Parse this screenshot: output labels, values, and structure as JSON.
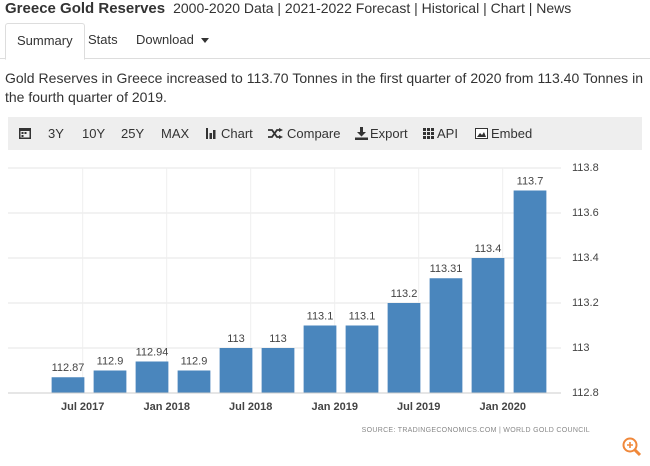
{
  "header": {
    "title": "Greece Gold Reserves",
    "nav": "2000-2020 Data | 2021-2022 Forecast | Historical | Chart | News"
  },
  "tabs": [
    "Summary",
    "Stats",
    "Download"
  ],
  "summary": "Gold Reserves in Greece increased to 113.70 Tonnes in the first quarter of 2020 from 113.40 Tonnes in the fourth quarter of 2019.",
  "toolbar": [
    "3Y",
    "10Y",
    "25Y",
    "MAX",
    "Chart",
    "Compare",
    "Export",
    "API",
    "Embed"
  ],
  "chart_data": {
    "type": "bar",
    "categories": [
      "Jul 2017",
      null,
      "Jan 2018",
      null,
      "Jul 2018",
      null,
      "Jan 2019",
      null,
      "Jul 2019",
      null,
      "Jan 2020",
      null
    ],
    "values": [
      112.87,
      112.9,
      112.94,
      112.9,
      113,
      113,
      113.1,
      113.1,
      113.2,
      113.31,
      113.4,
      113.7
    ],
    "color": "#4a86bd",
    "ylim": [
      112.8,
      113.8
    ],
    "yticks": [
      112.8,
      113,
      113.2,
      113.4,
      113.6,
      113.8
    ],
    "grid": true,
    "source": "SOURCE: TRADINGECONOMICS.COM | WORLD GOLD COUNCIL"
  }
}
